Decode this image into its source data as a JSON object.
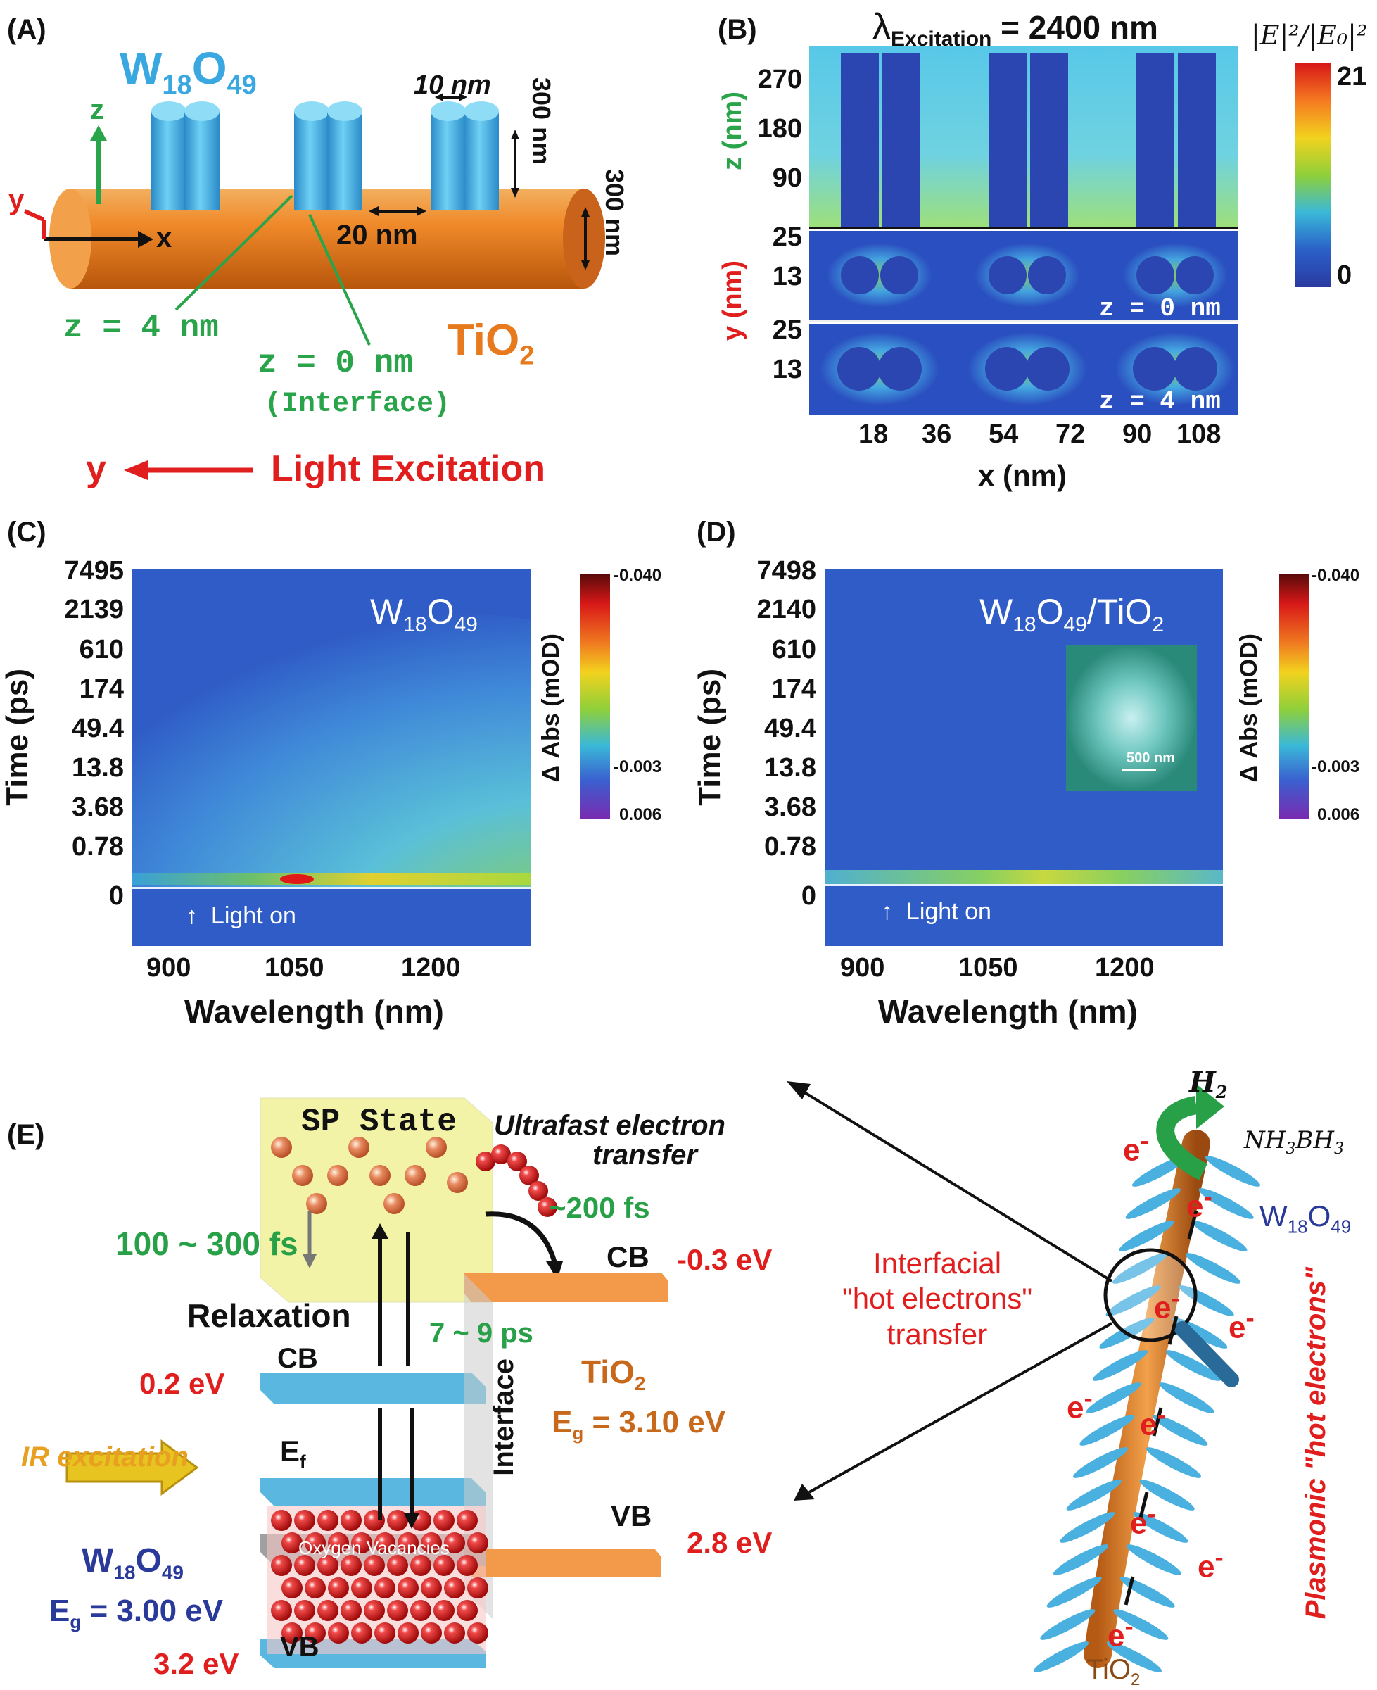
{
  "panelA": {
    "label": "(A)",
    "material_top": "W",
    "material_top_sub1": "18",
    "material_top_o": "O",
    "material_top_sub2": "49",
    "dim_width": "10 nm",
    "dim_height": "300 nm",
    "dim_gap": "20 nm",
    "dim_rod": "300 nm",
    "axis_z": "z",
    "axis_x": "x",
    "axis_y": "y",
    "z4": "z = 4 nm",
    "z0": "z = 0 nm",
    "interface": "(Interface)",
    "substrate": "TiO",
    "substrate_sub": "2",
    "light_y": "y",
    "light": "Light Excitation"
  },
  "panelB": {
    "label": "(B)",
    "title_lambda": "λ",
    "title_sub": "Excitation",
    "title_value": " = 2400 nm",
    "colorbar_title": "|E|²/|E₀|²",
    "colorbar_max": "21",
    "colorbar_min": "0",
    "z_axis_label": "z (nm)",
    "y_axis_label": "y (nm)",
    "x_axis_label": "x (nm)",
    "z_ticks": [
      "270",
      "180",
      "90"
    ],
    "y_ticks_1": [
      "25",
      "13"
    ],
    "y_ticks_2": [
      "25",
      "13"
    ],
    "x_ticks": [
      "18",
      "36",
      "54",
      "72",
      "90",
      "108"
    ],
    "slice1": "z = 0 nm",
    "slice2": "z = 4 nm"
  },
  "panelC": {
    "label": "(C)",
    "sample_w": "W",
    "sample_sub1": "18",
    "sample_o": "O",
    "sample_sub2": "49",
    "y_label": "Time (ps)",
    "x_label": "Wavelength (nm)",
    "y_ticks": [
      "7495",
      "2139",
      "610",
      "174",
      "49.4",
      "13.8",
      "3.68",
      "0.78",
      "0"
    ],
    "x_ticks": [
      "900",
      "1050",
      "1200"
    ],
    "light_on": "Light on",
    "cb_label": "Δ Abs (mOD)",
    "cb_ticks": [
      "-0.040",
      "-0.003",
      "0.006"
    ]
  },
  "panelD": {
    "label": "(D)",
    "sample_w": "W",
    "sample_sub1": "18",
    "sample_o": "O",
    "sample_sub2": "49",
    "sample_rest": "/TiO",
    "sample_sub3": "2",
    "y_label": "Time (ps)",
    "x_label": "Wavelength (nm)",
    "y_ticks": [
      "7498",
      "2140",
      "610",
      "174",
      "49.4",
      "13.8",
      "3.68",
      "0.78",
      "0"
    ],
    "x_ticks": [
      "900",
      "1050",
      "1200"
    ],
    "light_on": "Light on",
    "scale_bar": "500 nm",
    "cb_label": "Δ Abs (mOD)",
    "cb_ticks": [
      "-0.040",
      "-0.003",
      "0.006"
    ]
  },
  "panelE": {
    "label": "(E)",
    "sp_state": "SP State",
    "ultrafast_1": "Ultrafast electron",
    "ultrafast_2": "transfer",
    "t200": "~200 fs",
    "t100": "100 ~ 300 fs",
    "relax": "Relaxation",
    "t7": "7 ~ 9 ps",
    "cb_tio2": "CB",
    "cb_tio2_e": "-0.3 eV",
    "cb_w": "CB",
    "cb_w_e": "0.2 eV",
    "ef": "E",
    "ef_sub": "f",
    "interface": "Interface",
    "tio2": "TiO",
    "tio2_sub": "2",
    "tio2_eg": "E",
    "tio2_eg_sub": "g",
    "tio2_eg_val": "= 3.10 eV",
    "ir": "IR excitation",
    "oxygen": "Oxygen Vacancies",
    "vb_tio2": "VB",
    "vb_tio2_e": "2.8 eV",
    "w_name": "W",
    "w_sub1": "18",
    "w_o": "O",
    "w_sub2": "49",
    "w_eg": "E",
    "w_eg_sub": "g",
    "w_eg_val": "= 3.00 eV",
    "vb_w": "VB",
    "vb_w_e": "3.2 eV",
    "h2": "H",
    "h2_sub": "2",
    "nh3": "NH",
    "nh3_sub1": "3",
    "nh3_b": "BH",
    "nh3_sub2": "3",
    "w_right": "W",
    "w_right_sub1": "18",
    "w_right_o": "O",
    "w_right_sub2": "49",
    "interfacial_1": "Interfacial",
    "interfacial_2": "\"hot electrons\"",
    "interfacial_3": "transfer",
    "plasmonic": "Plasmonic \"hot electrons\"",
    "tio2_bottom": "TiO",
    "tio2_bottom_sub": "2",
    "electron": "e",
    "electron_sup": "-"
  },
  "colors": {
    "green": "#2aa44a",
    "red": "#e01e1e",
    "orange": "#e87a1e",
    "blue": "#3aa8e0",
    "navy": "#2a3a9a",
    "jet_bg": "#2a4fc0"
  }
}
